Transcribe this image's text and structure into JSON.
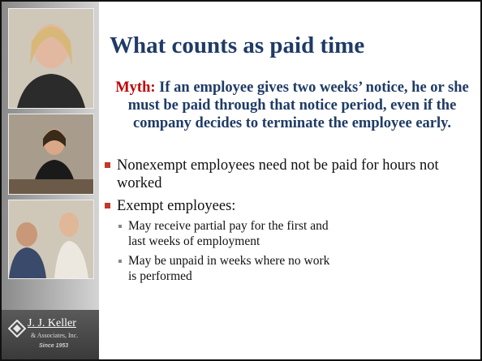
{
  "slide": {
    "title": "What counts as paid time",
    "myth": {
      "label": "Myth:",
      "text": "If an employee gives two weeks’ notice, he or she must be paid through that notice period, even if the company decides to terminate the employee early."
    },
    "bullets": [
      {
        "text": "Nonexempt employees need not be paid for hours not worked"
      },
      {
        "text": "Exempt employees:",
        "sub": [
          "May receive partial pay for the first and last weeks of employment",
          "May be unpaid in weeks where no work is performed"
        ]
      }
    ],
    "logo": {
      "name": "J. J. Keller",
      "company": "& Associates, Inc.",
      "since": "Since 1953"
    }
  }
}
